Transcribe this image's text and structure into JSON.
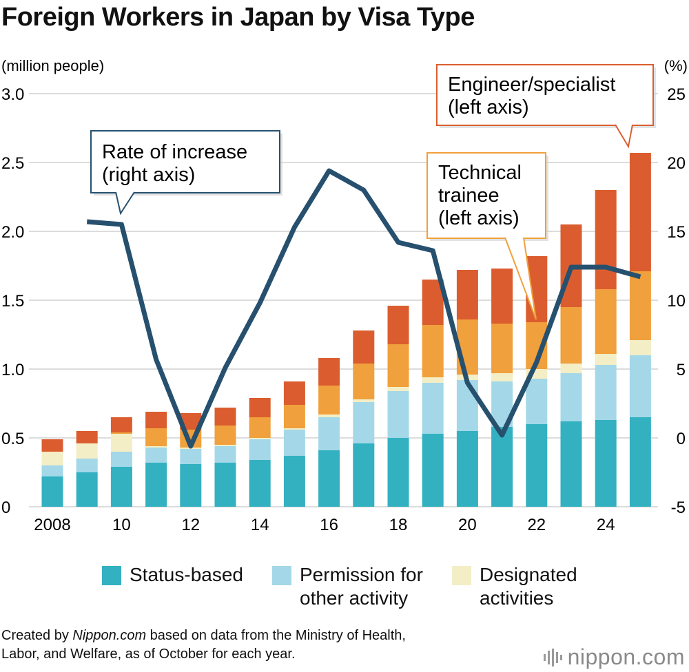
{
  "title": "Foreign Workers in Japan by Visa Type",
  "left_axis_unit": "(million people)",
  "right_axis_unit": "(%)",
  "colors": {
    "status_based": "#33b1c1",
    "permission": "#a4d8e8",
    "designated": "#f3eec6",
    "technical_trainee": "#f0a03c",
    "engineer": "#db5d2f",
    "rate_line": "#26506e",
    "grid": "#c8c8c8"
  },
  "chart_data": {
    "type": "bar",
    "stacked": true,
    "x": [
      2008,
      2009,
      2010,
      2011,
      2012,
      2013,
      2014,
      2015,
      2016,
      2017,
      2018,
      2019,
      2020,
      2021,
      2022,
      2023,
      2024,
      2025
    ],
    "x_tick_labels": [
      {
        "x": 2008,
        "label": "2008"
      },
      {
        "x": 2010,
        "label": "10"
      },
      {
        "x": 2012,
        "label": "12"
      },
      {
        "x": 2014,
        "label": "14"
      },
      {
        "x": 2016,
        "label": "16"
      },
      {
        "x": 2018,
        "label": "18"
      },
      {
        "x": 2020,
        "label": "20"
      },
      {
        "x": 2022,
        "label": "22"
      },
      {
        "x": 2024,
        "label": "24"
      }
    ],
    "left_axis": {
      "ylim": [
        0,
        3.0
      ],
      "ticks": [
        "0",
        "0.5",
        "1.0",
        "1.5",
        "2.0",
        "2.5",
        "3.0"
      ]
    },
    "right_axis": {
      "ylim": [
        -5,
        25
      ],
      "ticks": [
        "-5",
        "0",
        "5",
        "10",
        "15",
        "20",
        "25"
      ]
    },
    "grid": true,
    "series": [
      {
        "name": "Status-based",
        "axis": "left",
        "values": [
          0.22,
          0.25,
          0.29,
          0.32,
          0.31,
          0.32,
          0.34,
          0.37,
          0.41,
          0.46,
          0.5,
          0.53,
          0.55,
          0.58,
          0.6,
          0.62,
          0.63,
          0.65
        ]
      },
      {
        "name": "Permission for other activity",
        "axis": "left",
        "values": [
          0.08,
          0.1,
          0.11,
          0.11,
          0.11,
          0.12,
          0.15,
          0.19,
          0.24,
          0.3,
          0.34,
          0.37,
          0.37,
          0.33,
          0.33,
          0.35,
          0.4,
          0.45
        ]
      },
      {
        "name": "Designated activities",
        "axis": "left",
        "values": [
          0.1,
          0.11,
          0.13,
          0.01,
          0.01,
          0.01,
          0.01,
          0.01,
          0.02,
          0.02,
          0.03,
          0.04,
          0.04,
          0.06,
          0.07,
          0.07,
          0.08,
          0.11
        ]
      },
      {
        "name": "Technical trainee",
        "axis": "left",
        "values": [
          0.0,
          0.0,
          0.01,
          0.13,
          0.13,
          0.14,
          0.15,
          0.17,
          0.21,
          0.26,
          0.31,
          0.38,
          0.4,
          0.36,
          0.34,
          0.41,
          0.47,
          0.5
        ]
      },
      {
        "name": "Engineer/specialist",
        "axis": "left",
        "values": [
          0.09,
          0.09,
          0.11,
          0.12,
          0.12,
          0.13,
          0.14,
          0.17,
          0.2,
          0.24,
          0.28,
          0.33,
          0.36,
          0.4,
          0.48,
          0.6,
          0.72,
          0.86
        ]
      },
      {
        "name": "Rate of increase",
        "type": "line",
        "axis": "right",
        "x": [
          2009,
          2010,
          2011,
          2012,
          2013,
          2014,
          2015,
          2016,
          2017,
          2018,
          2019,
          2020,
          2021,
          2022,
          2023,
          2024,
          2025
        ],
        "values": [
          15.7,
          15.5,
          5.7,
          -0.6,
          5.1,
          9.8,
          15.3,
          19.4,
          18.0,
          14.2,
          13.6,
          4.0,
          0.2,
          5.5,
          12.4,
          12.4,
          11.7
        ]
      }
    ],
    "annotations": [
      {
        "series": "Rate of increase",
        "text": "Rate of increase\n(right axis)"
      },
      {
        "series": "Technical trainee",
        "text": "Technical\ntrainee\n(left axis)"
      },
      {
        "series": "Engineer/specialist",
        "text": "Engineer/specialist\n(left axis)"
      }
    ]
  },
  "legend": [
    {
      "label": "Status-based",
      "color_key": "status_based"
    },
    {
      "label": "Permission for\nother activity",
      "color_key": "permission"
    },
    {
      "label": "Designated\nactivities",
      "color_key": "designated"
    }
  ],
  "footer": {
    "prefix": "Created by ",
    "source": "Nippon.com",
    "line1_rest": " based on data from the Ministry of Health,",
    "line2": "Labor, and Welfare, as of October for each year."
  },
  "logo": {
    "text": "nippon.com",
    "icon": "sound-wave-icon"
  }
}
